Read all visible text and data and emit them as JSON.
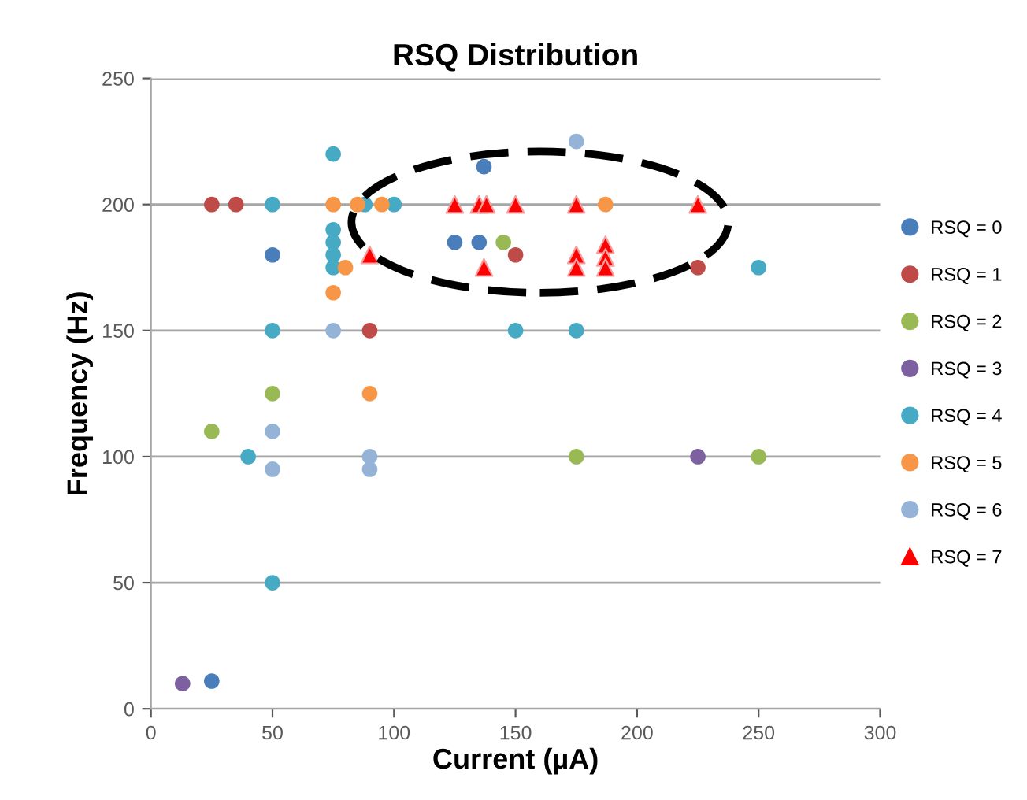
{
  "chart_data": {
    "type": "scatter",
    "title": "RSQ Distribution",
    "xlabel": "Current (µA)",
    "ylabel": "Frequency (Hz)",
    "xlim": [
      0,
      300
    ],
    "xticks": [
      0,
      50,
      100,
      150,
      200,
      250,
      300
    ],
    "ylim": [
      0,
      250
    ],
    "yticks": [
      0,
      50,
      100,
      150,
      200,
      250
    ],
    "grid": "y",
    "legend": "right",
    "marker": "circle",
    "series": [
      {
        "name": "RSQ = 0",
        "color": "#4a7ebb",
        "x": [
          25,
          50,
          125,
          135,
          137
        ],
        "values": [
          11,
          180,
          185,
          185,
          215
        ]
      },
      {
        "name": "RSQ = 1",
        "color": "#be4b48",
        "x": [
          25,
          35,
          90,
          150,
          225
        ],
        "values": [
          200,
          200,
          150,
          180,
          175
        ]
      },
      {
        "name": "RSQ = 2",
        "color": "#98b954",
        "x": [
          25,
          50,
          145,
          175,
          250
        ],
        "values": [
          110,
          125,
          185,
          100,
          100
        ]
      },
      {
        "name": "RSQ = 3",
        "color": "#7d60a0",
        "x": [
          13,
          225
        ],
        "values": [
          10,
          100
        ]
      },
      {
        "name": "RSQ = 4",
        "color": "#46aac5",
        "x": [
          40,
          50,
          50,
          50,
          75,
          75,
          75,
          75,
          75,
          88,
          100,
          150,
          175,
          250
        ],
        "values": [
          100,
          50,
          150,
          200,
          220,
          190,
          185,
          180,
          175,
          200,
          200,
          150,
          150,
          175
        ]
      },
      {
        "name": "RSQ = 5",
        "color": "#f79646",
        "x": [
          75,
          85,
          95,
          80,
          75,
          90,
          187
        ],
        "values": [
          200,
          200,
          200,
          175,
          165,
          125,
          200
        ]
      },
      {
        "name": "RSQ = 6",
        "color": "#95b3d7",
        "x": [
          50,
          50,
          75,
          90,
          90,
          175
        ],
        "values": [
          110,
          95,
          150,
          100,
          95,
          225
        ]
      },
      {
        "name": "RSQ = 7",
        "color": "#ff0000",
        "marker": "triangle",
        "x": [
          90,
          125,
          135,
          138,
          150,
          175,
          225,
          137,
          175,
          175,
          187,
          187,
          187
        ],
        "values": [
          180,
          200,
          200,
          200,
          200,
          200,
          200,
          175,
          180,
          175,
          184,
          179,
          175
        ]
      }
    ]
  }
}
